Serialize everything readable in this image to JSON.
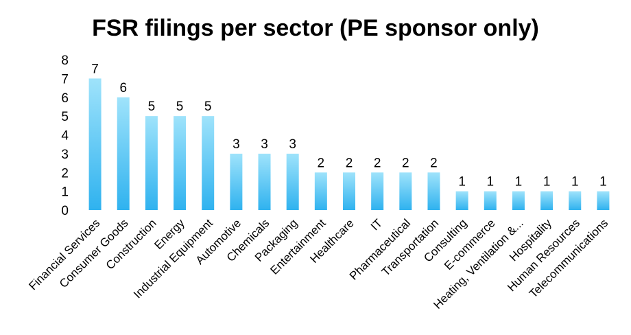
{
  "chart_data": {
    "type": "bar",
    "title": "FSR filings per sector (PE sponsor only)",
    "xlabel": "",
    "ylabel": "",
    "ylim": [
      0,
      8
    ],
    "yticks": [
      0,
      1,
      2,
      3,
      4,
      5,
      6,
      7,
      8
    ],
    "grid": false,
    "legend": "none",
    "bar_color_top": "#9fe3fb",
    "bar_color_bottom": "#2fb2ef",
    "categories": [
      "Financial Services",
      "Consumer Goods",
      "Construction",
      "Energy",
      "Industrial Equipment",
      "Automotive",
      "Chemicals",
      "Packaging",
      "Entertainment",
      "Healthcare",
      "IT",
      "Pharmaceutical",
      "Transportation",
      "Consulting",
      "E-commerce",
      "Heating, Ventilation &...",
      "Hospitality",
      "Human Resources",
      "Telecommunications"
    ],
    "values": [
      7,
      6,
      5,
      5,
      5,
      3,
      3,
      3,
      2,
      2,
      2,
      2,
      2,
      1,
      1,
      1,
      1,
      1,
      1
    ]
  }
}
